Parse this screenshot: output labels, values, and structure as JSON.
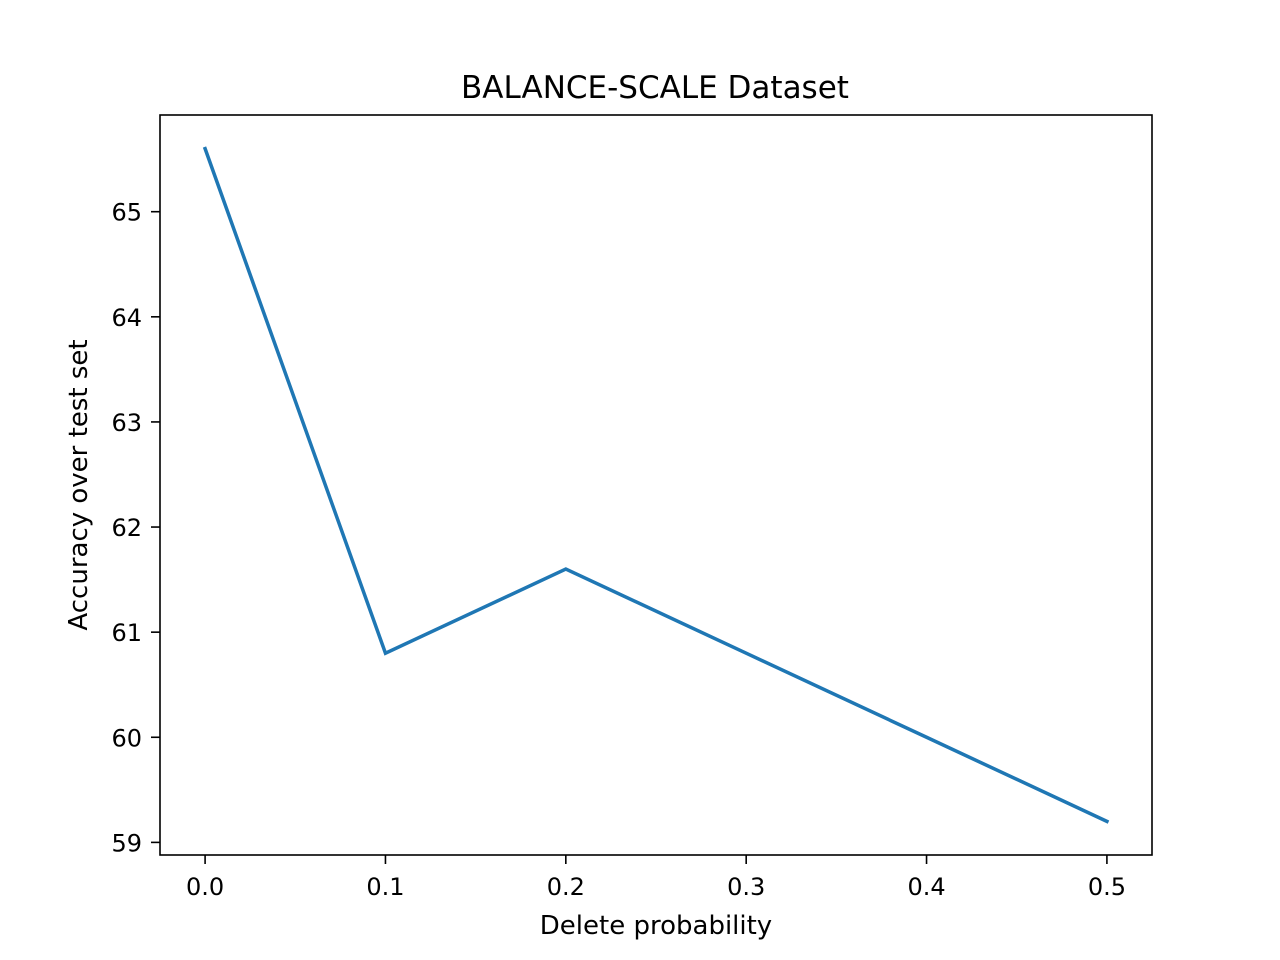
{
  "chart_data": {
    "type": "line",
    "title": "BALANCE-SCALE Dataset",
    "xlabel": "Delete probability",
    "ylabel": "Accuracy over test set",
    "x": [
      0.0,
      0.1,
      0.2,
      0.3,
      0.4,
      0.5
    ],
    "series": [
      {
        "values": [
          65.6,
          60.8,
          61.6,
          60.8,
          60.0,
          59.2
        ],
        "color": "#1f77b4"
      }
    ],
    "xticks": [
      "0.0",
      "0.1",
      "0.2",
      "0.3",
      "0.4",
      "0.5"
    ],
    "yticks": [
      "59",
      "60",
      "61",
      "62",
      "63",
      "64",
      "65"
    ],
    "xlim": [
      -0.025,
      0.525
    ],
    "ylim": [
      58.88,
      65.92
    ],
    "grid": false
  }
}
